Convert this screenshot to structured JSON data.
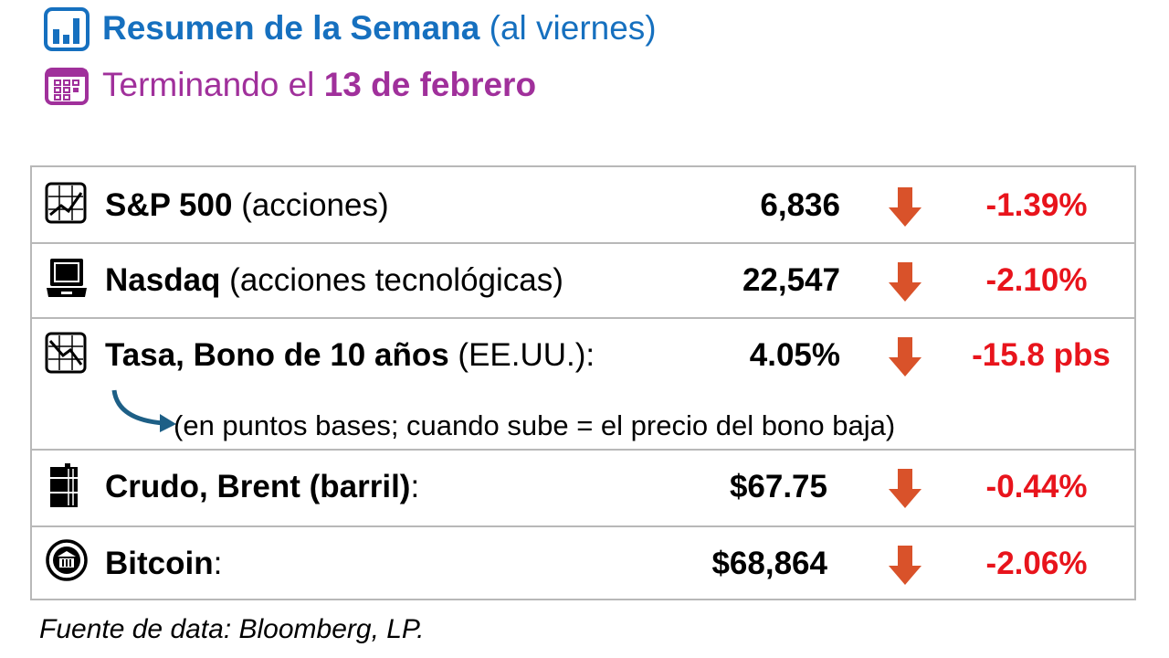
{
  "header": {
    "title_bold": "Resumen de la Semana",
    "title_rest": "(al viernes)",
    "subtitle_prefix": "Terminando el",
    "subtitle_date": "13 de febrero"
  },
  "rows": [
    {
      "name": "S&P 500",
      "desc": "(acciones)",
      "value": "6,836",
      "change": "-1.39%",
      "direction": "down",
      "icon": "chart-up-icon"
    },
    {
      "name": "Nasdaq",
      "desc": "(acciones tecnológicas)",
      "value": "22,547",
      "change": "-2.10%",
      "direction": "down",
      "icon": "laptop-icon"
    },
    {
      "name": "Tasa, Bono de 10 años",
      "desc": "(EE.UU.):",
      "value": "4.05%",
      "change": "-15.8 pbs",
      "direction": "down",
      "icon": "chart-down-icon"
    },
    {
      "name": "Crudo, Brent (barril)",
      "desc": ":",
      "value": "$67.75",
      "change": "-0.44%",
      "direction": "down",
      "icon": "oil-barrel-icon"
    },
    {
      "name": "Bitcoin",
      "desc": ":",
      "value": "$68,864",
      "change": "-2.06%",
      "direction": "down",
      "icon": "bank-coin-icon"
    }
  ],
  "note": "(en puntos bases; cuando sube = el precio del bono baja)",
  "source": "Fuente de data: Bloomberg, LP.",
  "colors": {
    "blue": "#1670bf",
    "purple": "#a0309b",
    "red": "#e8141c",
    "arrow": "#d9522a"
  }
}
